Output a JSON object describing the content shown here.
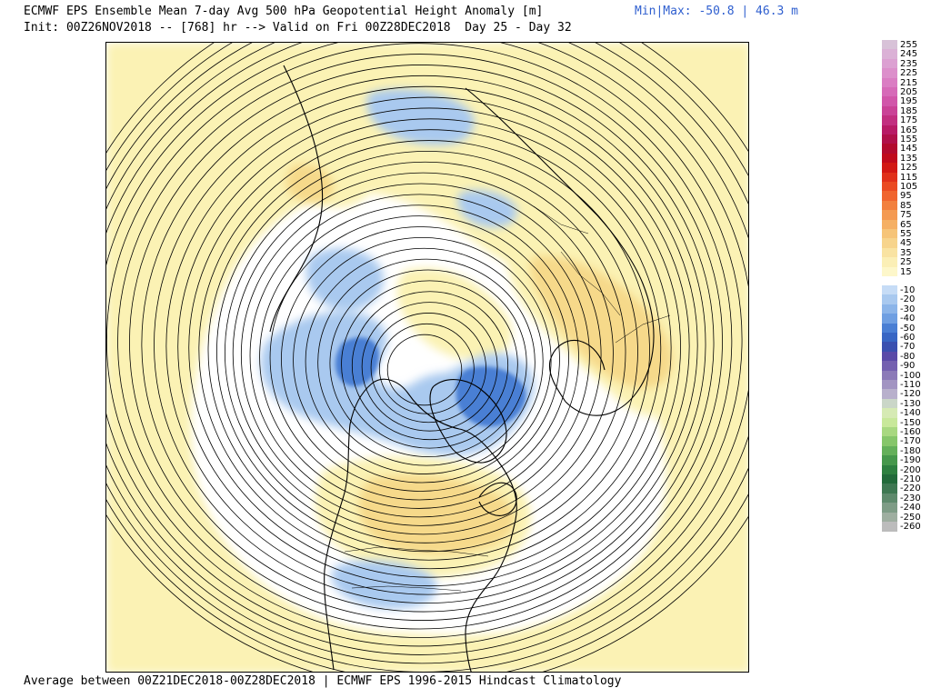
{
  "header": {
    "title_line1": "ECMWF EPS Ensemble Mean 7-day Avg 500 hPa Geopotential Height Anomaly [m]",
    "title_line2": "Init: 00Z26NOV2018 -- [768] hr --> Valid on Fri 00Z28DEC2018  Day 25 - Day 32",
    "minmax": "Min|Max: -50.8 | 46.3 m"
  },
  "footer": {
    "text": "Average between 00Z21DEC2018-00Z28DEC2018 | ECMWF EPS 1996-2015 Hindcast Climatology"
  },
  "map": {
    "projection": "north-polar-stereographic",
    "colors": {
      "positive_light": "#fbf2b4",
      "positive_mid": "#f6d98a",
      "positive_strong": "#f2c46e",
      "negative_light": "#a9c9ef",
      "negative_mid": "#6f9fe2",
      "negative_strong": "#4a7fd4",
      "contour": "#000000",
      "coast": "#000000"
    }
  },
  "colorbar": {
    "positive": [
      {
        "label": "255",
        "color": "#d8c2d8"
      },
      {
        "label": "245",
        "color": "#dbb1d6"
      },
      {
        "label": "235",
        "color": "#dca0d2"
      },
      {
        "label": "225",
        "color": "#dc8fcb"
      },
      {
        "label": "215",
        "color": "#da7dc3"
      },
      {
        "label": "205",
        "color": "#d66ab8"
      },
      {
        "label": "195",
        "color": "#d156aa"
      },
      {
        "label": "185",
        "color": "#ca4297"
      },
      {
        "label": "175",
        "color": "#c22e80"
      },
      {
        "label": "165",
        "color": "#b81a66"
      },
      {
        "label": "155",
        "color": "#b0104a"
      },
      {
        "label": "145",
        "color": "#b20a2e"
      },
      {
        "label": "135",
        "color": "#c00a1c"
      },
      {
        "label": "125",
        "color": "#d21814"
      },
      {
        "label": "115",
        "color": "#e0301a"
      },
      {
        "label": "105",
        "color": "#ea4a22"
      },
      {
        "label": "95",
        "color": "#f0642e"
      },
      {
        "label": "85",
        "color": "#f2803e"
      },
      {
        "label": "75",
        "color": "#f49a52"
      },
      {
        "label": "65",
        "color": "#f5b064"
      },
      {
        "label": "55",
        "color": "#f6c478"
      },
      {
        "label": "45",
        "color": "#f7d48c"
      },
      {
        "label": "35",
        "color": "#f9e3a2"
      },
      {
        "label": "25",
        "color": "#fbefb6"
      },
      {
        "label": "15",
        "color": "#fdf7ca"
      }
    ],
    "negative": [
      {
        "label": "-10",
        "color": "#c6dcf6"
      },
      {
        "label": "-20",
        "color": "#a9c9ef"
      },
      {
        "label": "-30",
        "color": "#8cb5e9"
      },
      {
        "label": "-40",
        "color": "#6f9fe2"
      },
      {
        "label": "-50",
        "color": "#4a7fd4"
      },
      {
        "label": "-60",
        "color": "#3866c4"
      },
      {
        "label": "-70",
        "color": "#3a50b0"
      },
      {
        "label": "-80",
        "color": "#5a4aa8"
      },
      {
        "label": "-90",
        "color": "#7460b0"
      },
      {
        "label": "-100",
        "color": "#8c7ab8"
      },
      {
        "label": "-110",
        "color": "#a294c2"
      },
      {
        "label": "-120",
        "color": "#b8b0cc"
      },
      {
        "label": "-130",
        "color": "#cad6c8"
      },
      {
        "label": "-140",
        "color": "#d6eab4"
      },
      {
        "label": "-150",
        "color": "#c8e89a"
      },
      {
        "label": "-160",
        "color": "#a8d880"
      },
      {
        "label": "-170",
        "color": "#86c66a"
      },
      {
        "label": "-180",
        "color": "#64b05a"
      },
      {
        "label": "-190",
        "color": "#46984c"
      },
      {
        "label": "-200",
        "color": "#2e8040"
      },
      {
        "label": "-210",
        "color": "#226a3a"
      },
      {
        "label": "-220",
        "color": "#3e7852"
      },
      {
        "label": "-230",
        "color": "#5e8a6c"
      },
      {
        "label": "-240",
        "color": "#7e9c86"
      },
      {
        "label": "-250",
        "color": "#9eaea0"
      },
      {
        "label": "-260",
        "color": "#bcbcbc"
      }
    ]
  }
}
